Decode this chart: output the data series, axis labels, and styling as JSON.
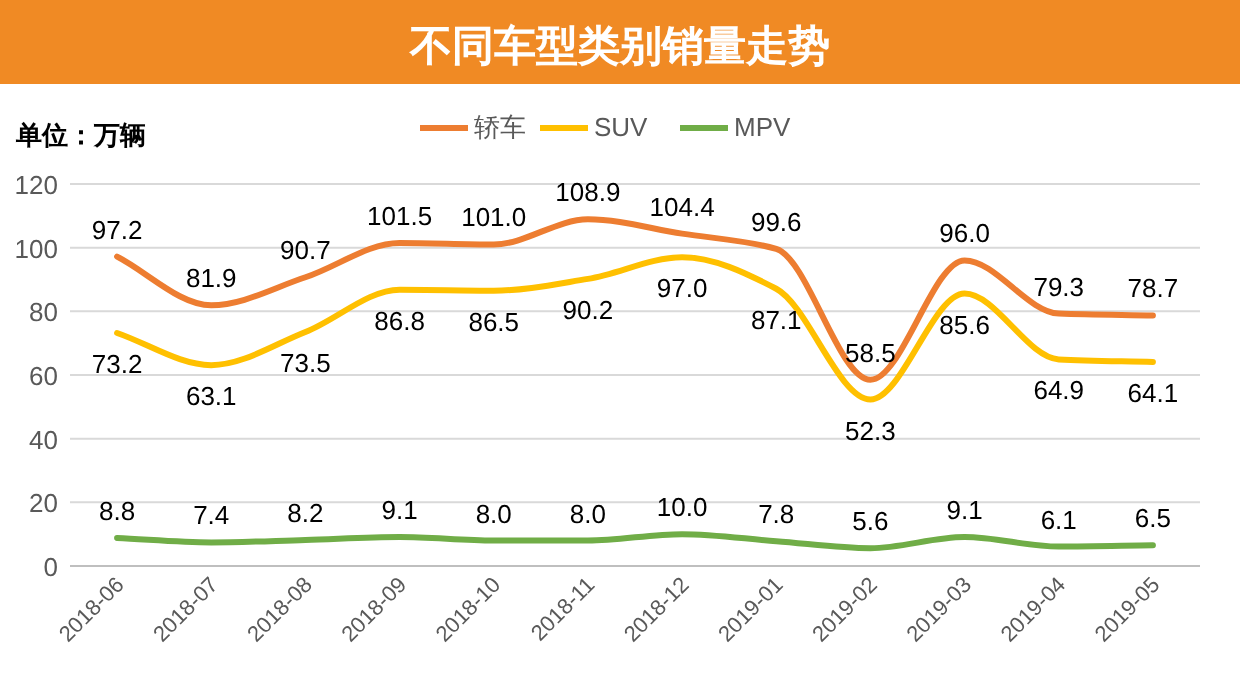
{
  "chart_data": {
    "type": "line",
    "title": "不同车型类别销量走势",
    "annotations": [
      "单位：万辆"
    ],
    "categories": [
      "2018-06",
      "2018-07",
      "2018-08",
      "2018-09",
      "2018-10",
      "2018-11",
      "2018-12",
      "2019-01",
      "2019-02",
      "2019-03",
      "2019-04",
      "2019-05"
    ],
    "series": [
      {
        "name": "轿车",
        "color": "#ed7d31",
        "values": [
          97.2,
          81.9,
          90.7,
          101.5,
          101.0,
          108.9,
          104.4,
          99.6,
          58.5,
          96.0,
          79.3,
          78.7
        ],
        "value_labels": [
          "97.2",
          "81.9",
          "90.7",
          "101.5",
          "101.0",
          "108.9",
          "104.4",
          "99.6",
          "58.5",
          "96.0",
          "79.3",
          "78.7"
        ]
      },
      {
        "name": "SUV",
        "color": "#ffc000",
        "values": [
          73.2,
          63.1,
          73.5,
          86.8,
          86.5,
          90.2,
          97.0,
          87.1,
          52.3,
          85.6,
          64.9,
          64.1
        ],
        "value_labels": [
          "73.2",
          "63.1",
          "73.5",
          "86.8",
          "86.5",
          "90.2",
          "97.0",
          "87.1",
          "52.3",
          "85.6",
          "64.9",
          "64.1"
        ]
      },
      {
        "name": "MPV",
        "color": "#70ad47",
        "values": [
          8.8,
          7.4,
          8.2,
          9.1,
          8.0,
          8.0,
          10.0,
          7.8,
          5.6,
          9.1,
          6.1,
          6.5
        ],
        "value_labels": [
          "8.8",
          "7.4",
          "8.2",
          "9.1",
          "8.0",
          "8.0",
          "10.0",
          "7.8",
          "5.6",
          "9.1",
          "6.1",
          "6.5"
        ]
      }
    ],
    "ylim": [
      0,
      120
    ],
    "yticks": [
      0,
      20,
      40,
      60,
      80,
      100,
      120
    ],
    "grid": "y",
    "legend": "top",
    "line_style": "solid"
  }
}
